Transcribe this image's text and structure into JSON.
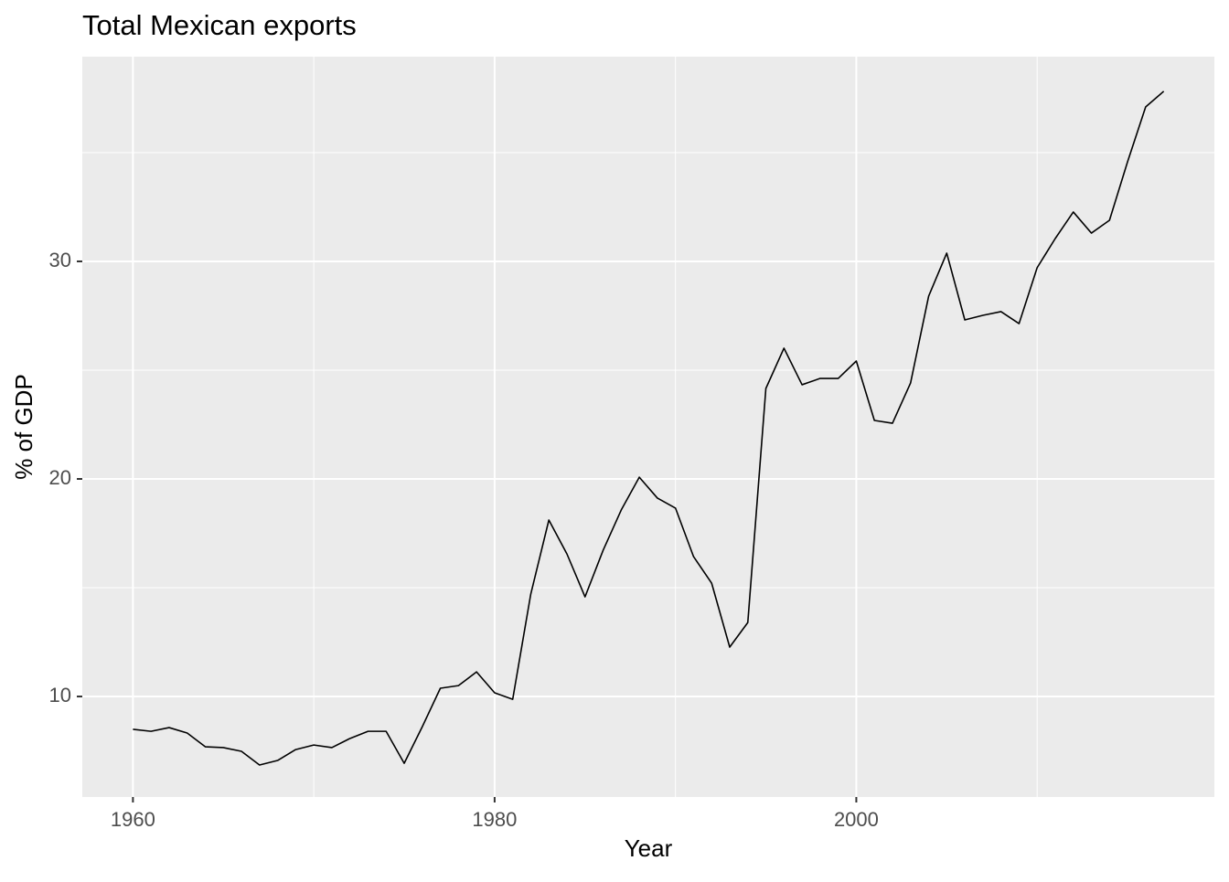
{
  "chart_data": {
    "type": "line",
    "title": "Total Mexican exports",
    "x_label": "Year",
    "y_label": "% of GDP",
    "x": [
      1960,
      1961,
      1962,
      1963,
      1964,
      1965,
      1966,
      1967,
      1968,
      1969,
      1970,
      1971,
      1972,
      1973,
      1974,
      1975,
      1976,
      1977,
      1978,
      1979,
      1980,
      1981,
      1982,
      1983,
      1984,
      1985,
      1986,
      1987,
      1988,
      1989,
      1990,
      1991,
      1992,
      1993,
      1994,
      1995,
      1996,
      1997,
      1998,
      1999,
      2000,
      2001,
      2002,
      2003,
      2004,
      2005,
      2006,
      2007,
      2008,
      2009,
      2010,
      2011,
      2012,
      2013,
      2014,
      2015,
      2016,
      2017
    ],
    "series": [
      {
        "color": "#000000",
        "values": [
          8.49,
          8.4,
          8.57,
          8.32,
          7.69,
          7.65,
          7.48,
          6.85,
          7.06,
          7.56,
          7.77,
          7.65,
          8.07,
          8.4,
          8.4,
          6.93,
          8.61,
          10.38,
          10.5,
          11.13,
          10.17,
          9.87,
          14.71,
          18.11,
          16.55,
          14.58,
          16.72,
          18.57,
          20.08,
          19.12,
          18.66,
          16.43,
          15.21,
          12.27,
          13.4,
          24.16,
          26.01,
          24.33,
          24.62,
          24.62,
          25.42,
          22.69,
          22.56,
          24.41,
          28.4,
          30.38,
          27.31,
          27.52,
          27.69,
          27.14,
          29.71,
          31.05,
          32.27,
          31.3,
          31.89,
          34.58,
          37.1,
          37.82
        ]
      }
    ],
    "xlim": [
      1957.2,
      2019.8
    ],
    "ylim": [
      5.38,
      39.41
    ],
    "xticks": [
      1960,
      1980,
      2000
    ],
    "yticks": [
      10,
      20,
      30
    ],
    "minor_xticks": [
      1970,
      1990,
      2010
    ],
    "minor_yticks": [
      15,
      25,
      35
    ],
    "grid": true
  }
}
